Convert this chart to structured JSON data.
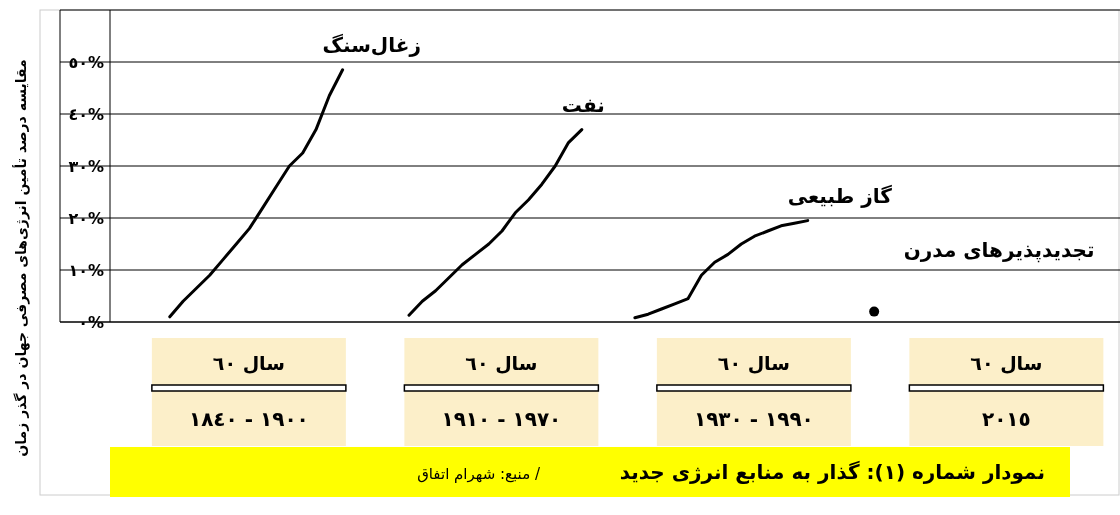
{
  "chart_data": {
    "type": "line",
    "title": "نمودار شماره (١): گذار به منابع انرژی جدید",
    "ylabel": "مقایسه درصد تأمین انرژی‌های مصرفی جهان در گذر زمان",
    "annotations": [
      "سال ٦٠",
      "١٩٠٠ - ١٨٤٠",
      "سال ٦٠",
      "١٩٧٠ - ١٩١٠",
      "سال ٦٠",
      "١٩٩٠ - ١٩٣٠",
      "سال ٦٠",
      "٢٠١٥",
      "/ منبع: شهرام اتفاق"
    ],
    "categories": [
      null,
      null,
      null,
      null,
      null,
      null,
      null,
      null,
      null,
      null,
      null,
      null,
      null,
      null,
      null,
      null,
      null,
      null,
      null,
      null,
      null,
      null,
      null,
      null,
      null,
      null,
      null,
      null,
      null,
      null,
      null,
      null,
      null,
      null,
      null,
      null,
      null,
      null,
      null,
      null,
      null,
      null,
      null,
      null,
      null,
      null,
      null,
      null,
      null,
      null,
      null,
      null,
      null,
      null,
      null,
      null,
      null,
      null,
      null,
      null,
      null,
      null,
      null,
      null,
      null,
      null,
      null,
      null,
      null,
      null,
      null,
      null,
      null,
      null,
      null,
      null
    ],
    "series": [
      {
        "name": "زغال‌سنگ",
        "color": "#000000",
        "values": [
          null,
          null,
          null,
          null,
          1,
          4,
          6.5,
          9,
          12,
          15,
          18,
          22,
          26,
          30,
          32.5,
          37,
          43.5,
          48.5,
          null,
          null,
          null,
          null,
          null,
          null,
          null,
          null,
          null,
          null,
          null,
          null,
          null,
          null,
          null,
          null,
          null,
          null,
          null,
          null,
          null,
          null,
          null,
          null,
          null,
          null,
          null,
          null,
          null,
          null,
          null,
          null,
          null,
          null,
          null,
          null,
          null,
          null,
          null,
          null,
          null,
          null,
          null,
          null,
          null,
          null,
          null,
          null,
          null,
          null,
          null,
          null,
          null,
          null,
          null,
          null,
          null,
          null
        ]
      },
      {
        "name": "نفت",
        "color": "#000000",
        "values": [
          null,
          null,
          null,
          null,
          null,
          null,
          null,
          null,
          null,
          null,
          null,
          null,
          null,
          null,
          null,
          null,
          null,
          null,
          null,
          null,
          null,
          null,
          1.3,
          4,
          6,
          8.5,
          11,
          13,
          15,
          17.5,
          21,
          23.5,
          26.5,
          30,
          34.5,
          37,
          null,
          null,
          null,
          null,
          null,
          null,
          null,
          null,
          null,
          null,
          null,
          null,
          null,
          null,
          null,
          null,
          null,
          null,
          null,
          null,
          null,
          null,
          null,
          null,
          null,
          null,
          null,
          null,
          null,
          null,
          null,
          null,
          null,
          null,
          null,
          null,
          null,
          null,
          null,
          null
        ]
      },
      {
        "name": "گاز طبیعی",
        "color": "#000000",
        "values": [
          null,
          null,
          null,
          null,
          null,
          null,
          null,
          null,
          null,
          null,
          null,
          null,
          null,
          null,
          null,
          null,
          null,
          null,
          null,
          null,
          null,
          null,
          null,
          null,
          null,
          null,
          null,
          null,
          null,
          null,
          null,
          null,
          null,
          null,
          null,
          null,
          null,
          null,
          null,
          0.8,
          1.5,
          2.5,
          3.5,
          4.5,
          9,
          11.5,
          13,
          15,
          16.5,
          17.5,
          18.5,
          19,
          19.5,
          null,
          null,
          null,
          null,
          null,
          null,
          null,
          null,
          null,
          null,
          null,
          null,
          null,
          null,
          null,
          null,
          null,
          null,
          null,
          null,
          null,
          null,
          null
        ]
      },
      {
        "name": "تجدیدپذیرهای مدرن",
        "type": "scatter",
        "color": "#000000",
        "values": [
          null,
          null,
          null,
          null,
          null,
          null,
          null,
          null,
          null,
          null,
          null,
          null,
          null,
          null,
          null,
          null,
          null,
          null,
          null,
          null,
          null,
          null,
          null,
          null,
          null,
          null,
          null,
          null,
          null,
          null,
          null,
          null,
          null,
          null,
          null,
          null,
          null,
          null,
          null,
          null,
          null,
          null,
          null,
          null,
          null,
          null,
          null,
          null,
          null,
          null,
          null,
          null,
          null,
          null,
          null,
          null,
          null,
          2,
          null,
          null,
          null,
          null,
          null,
          null,
          null,
          null,
          null,
          null,
          null,
          null,
          null,
          null,
          null,
          null,
          null,
          null
        ]
      }
    ],
    "ylim": [
      0,
      60
    ],
    "yticks": [
      {
        "value": 0,
        "label": "٠%"
      },
      {
        "value": 10,
        "label": "١٠%"
      },
      {
        "value": 20,
        "label": "٢٠%"
      },
      {
        "value": 30,
        "label": "٣٠%"
      },
      {
        "value": 40,
        "label": "٤٠%"
      },
      {
        "value": 50,
        "label": "٥٠%"
      }
    ],
    "grid": "y",
    "tick_labels": "y"
  }
}
